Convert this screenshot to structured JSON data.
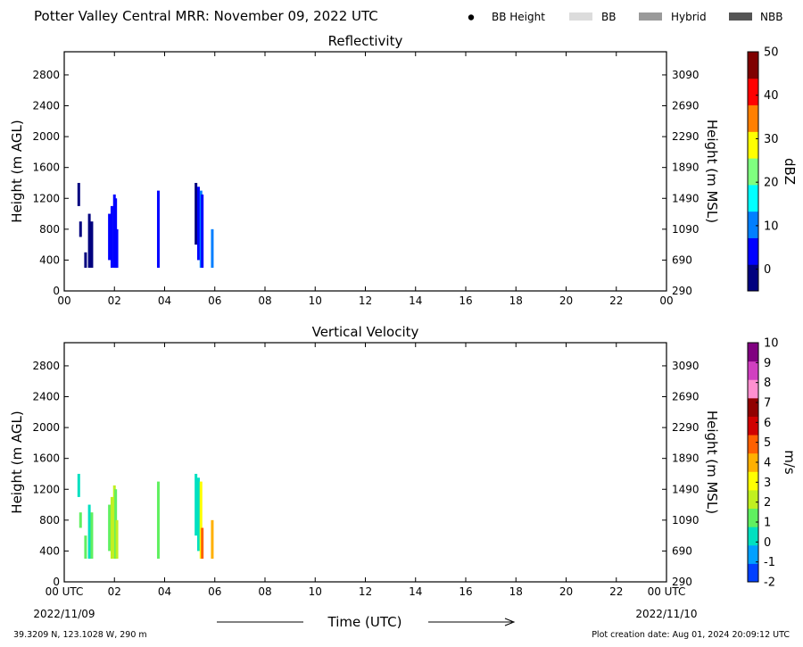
{
  "header": {
    "title": "Potter Valley Central MRR:  November 09, 2022 UTC",
    "legend": [
      {
        "label": "BB Height",
        "kind": "dot",
        "color": "#000000"
      },
      {
        "label": "BB",
        "kind": "swatch",
        "color": "#dcdcdc"
      },
      {
        "label": "Hybrid",
        "kind": "swatch",
        "color": "#9a9a9a"
      },
      {
        "label": "NBB",
        "kind": "swatch",
        "color": "#555555"
      }
    ]
  },
  "footer": {
    "coords": "39.3209 N, 123.1028 W, 290 m",
    "creation": "Plot creation date: Aug 01, 2024 20:09:12 UTC",
    "xlabel": "Time (UTC)",
    "start_date": "2022/11/09",
    "end_date": "2022/11/10"
  },
  "chart_data": [
    {
      "type": "heatmap",
      "title": "Reflectivity",
      "ylabel": "Height (m AGL)",
      "ylabel_right": "Height (m MSL)",
      "xlim": [
        0,
        24
      ],
      "ylim": [
        0,
        3100
      ],
      "x_ticks": [
        "00",
        "02",
        "04",
        "06",
        "08",
        "10",
        "12",
        "14",
        "16",
        "18",
        "20",
        "22",
        "00"
      ],
      "y_ticks": [
        "0",
        "400",
        "800",
        "1200",
        "1600",
        "2000",
        "2400",
        "2800"
      ],
      "y_ticks_right": [
        "290",
        "690",
        "1090",
        "1490",
        "1890",
        "2290",
        "2690",
        "3090"
      ],
      "colorbar": {
        "label": "dBZ",
        "min": -5,
        "max": 50,
        "ticks": [
          "0",
          "10",
          "20",
          "30",
          "40",
          "50"
        ],
        "tick_values": [
          0,
          10,
          20,
          30,
          40,
          50
        ],
        "colors": [
          "#00007f",
          "#0000ff",
          "#007fff",
          "#00ffff",
          "#7fff7f",
          "#ffff00",
          "#ff7f00",
          "#ff0000",
          "#7f0000"
        ]
      },
      "series": [
        {
          "t": 0.58,
          "bottom": 1100,
          "top": 1400,
          "value": -2
        },
        {
          "t": 0.65,
          "bottom": 700,
          "top": 900,
          "value": -1
        },
        {
          "t": 0.85,
          "bottom": 300,
          "top": 500,
          "value": 0
        },
        {
          "t": 1.0,
          "bottom": 300,
          "top": 1000,
          "value": -1
        },
        {
          "t": 1.1,
          "bottom": 300,
          "top": 900,
          "value": 0
        },
        {
          "t": 1.8,
          "bottom": 400,
          "top": 1000,
          "value": 2
        },
        {
          "t": 1.9,
          "bottom": 300,
          "top": 1100,
          "value": 3
        },
        {
          "t": 2.0,
          "bottom": 300,
          "top": 1250,
          "value": 4
        },
        {
          "t": 2.05,
          "bottom": 300,
          "top": 1200,
          "value": 3
        },
        {
          "t": 2.1,
          "bottom": 300,
          "top": 800,
          "value": 3
        },
        {
          "t": 3.75,
          "bottom": 300,
          "top": 1300,
          "value": 2
        },
        {
          "t": 5.25,
          "bottom": 600,
          "top": 1400,
          "value": 0
        },
        {
          "t": 5.35,
          "bottom": 400,
          "top": 1350,
          "value": 7
        },
        {
          "t": 5.45,
          "bottom": 300,
          "top": 1300,
          "value": 10
        },
        {
          "t": 5.5,
          "bottom": 300,
          "top": 1250,
          "value": 5
        },
        {
          "t": 5.9,
          "bottom": 300,
          "top": 800,
          "value": 8
        }
      ]
    },
    {
      "type": "heatmap",
      "title": "Vertical Velocity",
      "ylabel": "Height (m AGL)",
      "ylabel_right": "Height (m MSL)",
      "xlim": [
        0,
        24
      ],
      "ylim": [
        0,
        3100
      ],
      "x_ticks": [
        "00 UTC",
        "02",
        "04",
        "06",
        "08",
        "10",
        "12",
        "14",
        "16",
        "18",
        "20",
        "22",
        "00 UTC"
      ],
      "y_ticks": [
        "0",
        "400",
        "800",
        "1200",
        "1600",
        "2000",
        "2400",
        "2800"
      ],
      "y_ticks_right": [
        "290",
        "690",
        "1090",
        "1490",
        "1890",
        "2290",
        "2690",
        "3090"
      ],
      "colorbar": {
        "label": "m/s",
        "min": -2,
        "max": 10,
        "ticks": [
          "-2",
          "-1",
          "0",
          "1",
          "2",
          "3",
          "4",
          "5",
          "6",
          "7",
          "8",
          "9",
          "10"
        ],
        "tick_values": [
          -2,
          -1,
          0,
          1,
          2,
          3,
          4,
          5,
          6,
          7,
          8,
          9,
          10
        ],
        "colors": [
          "#0040ff",
          "#00a0ff",
          "#00e0c0",
          "#60f060",
          "#c0f020",
          "#ffff00",
          "#ffb000",
          "#ff6000",
          "#d00000",
          "#900000",
          "#ff90d0",
          "#d040c0",
          "#800080"
        ]
      },
      "series": [
        {
          "t": 0.58,
          "bottom": 1100,
          "top": 1400,
          "value": 0.3
        },
        {
          "t": 0.65,
          "bottom": 700,
          "top": 900,
          "value": 0.8
        },
        {
          "t": 0.85,
          "bottom": 300,
          "top": 600,
          "value": 1.2
        },
        {
          "t": 1.0,
          "bottom": 300,
          "top": 1000,
          "value": 0.5
        },
        {
          "t": 1.1,
          "bottom": 300,
          "top": 900,
          "value": 1.4
        },
        {
          "t": 1.8,
          "bottom": 400,
          "top": 1000,
          "value": 1.2
        },
        {
          "t": 1.9,
          "bottom": 300,
          "top": 1100,
          "value": 1.8
        },
        {
          "t": 2.0,
          "bottom": 300,
          "top": 1250,
          "value": 2.2
        },
        {
          "t": 2.05,
          "bottom": 300,
          "top": 1200,
          "value": 1.6
        },
        {
          "t": 2.1,
          "bottom": 300,
          "top": 800,
          "value": 1.9
        },
        {
          "t": 3.75,
          "bottom": 300,
          "top": 1300,
          "value": 1.3
        },
        {
          "t": 5.25,
          "bottom": 600,
          "top": 1400,
          "value": 0.5
        },
        {
          "t": 5.35,
          "bottom": 400,
          "top": 1350,
          "value": 0.6
        },
        {
          "t": 5.45,
          "bottom": 300,
          "top": 1300,
          "value": 3.5
        },
        {
          "t": 5.5,
          "bottom": 300,
          "top": 700,
          "value": 5
        },
        {
          "t": 5.9,
          "bottom": 300,
          "top": 800,
          "value": 4
        }
      ]
    }
  ]
}
